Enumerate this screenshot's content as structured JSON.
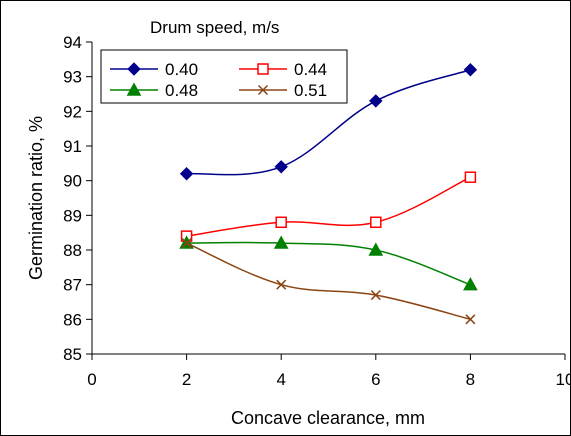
{
  "chart_data": {
    "type": "line",
    "xlabel": "Concave clearance, mm",
    "ylabel": "Germination ratio, %",
    "xlim": [
      0,
      10
    ],
    "ylim": [
      85,
      94
    ],
    "xticks": [
      "0",
      "2",
      "4",
      "6",
      "8",
      "10"
    ],
    "yticks": [
      "85",
      "86",
      "87",
      "88",
      "89",
      "90",
      "91",
      "92",
      "93",
      "94"
    ],
    "legend_title": "Drum speed, m/s",
    "legend_position": "top-left",
    "grid": false,
    "x": [
      2,
      4,
      6,
      8
    ],
    "series": [
      {
        "name": "0.40",
        "values": [
          90.2,
          90.4,
          92.3,
          93.2
        ],
        "color": "#00008b",
        "marker": "diamond"
      },
      {
        "name": "0.44",
        "values": [
          88.4,
          88.8,
          88.8,
          90.1
        ],
        "color": "#ff0000",
        "marker": "open-square"
      },
      {
        "name": "0.48",
        "values": [
          88.2,
          88.2,
          88.0,
          87.0
        ],
        "color": "#008000",
        "marker": "triangle"
      },
      {
        "name": "0.51",
        "values": [
          88.2,
          87.0,
          86.7,
          86.0
        ],
        "color": "#8b4513",
        "marker": "x"
      }
    ]
  }
}
